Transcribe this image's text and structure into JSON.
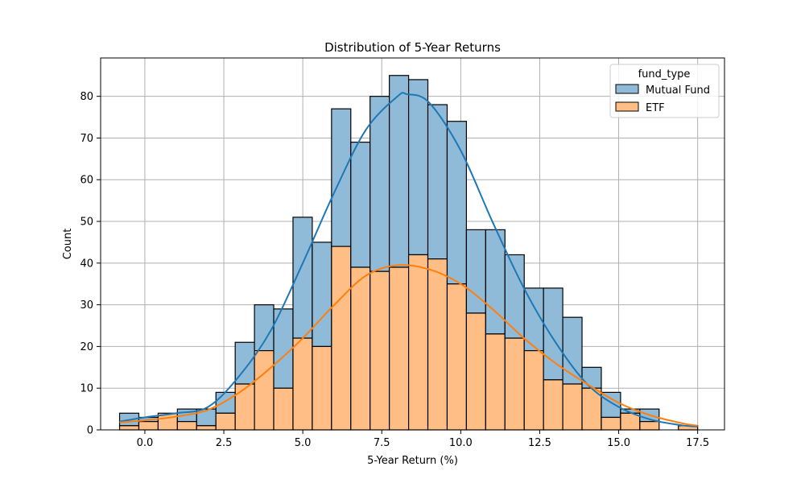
{
  "chart_data": {
    "type": "histogram",
    "stacked": true,
    "title": "Distribution of 5-Year Returns",
    "xlabel": "5-Year Return (%)",
    "ylabel": "Count",
    "xlim": [
      -1.4,
      18.35
    ],
    "ylim": [
      0,
      89.2
    ],
    "grid": true,
    "xticks": [
      "0.0",
      "2.5",
      "5.0",
      "7.5",
      "10.0",
      "12.5",
      "15.0",
      "17.5"
    ],
    "xtick_values": [
      0,
      2.5,
      5,
      7.5,
      10,
      12.5,
      15,
      17.5
    ],
    "yticks": [
      "0",
      "10",
      "20",
      "30",
      "40",
      "50",
      "60",
      "70",
      "80"
    ],
    "ytick_values": [
      0,
      10,
      20,
      30,
      40,
      50,
      60,
      70,
      80
    ],
    "bin_start": -0.8,
    "bin_width": 0.61,
    "legend": {
      "title": "fund_type",
      "position": "top-right",
      "entries": [
        "Mutual Fund",
        "ETF"
      ]
    },
    "series": [
      {
        "name": "ETF",
        "color": "#ffbe86",
        "kde_color": "#ff7f0e",
        "counts": [
          1,
          2,
          4,
          2,
          1,
          4,
          11,
          19,
          10,
          22,
          20,
          44,
          39,
          38,
          39,
          42,
          41,
          35,
          28,
          23,
          22,
          19,
          12,
          11,
          10,
          3,
          4,
          2,
          0,
          1
        ],
        "kde": [
          [
            -0.8,
            1.8
          ],
          [
            0,
            2.3
          ],
          [
            1,
            3.2
          ],
          [
            2,
            4.8
          ],
          [
            3,
            9.0
          ],
          [
            4,
            15.0
          ],
          [
            5,
            22.0
          ],
          [
            6,
            30.0
          ],
          [
            7,
            37.0
          ],
          [
            8,
            39.5
          ],
          [
            9,
            38.5
          ],
          [
            10,
            35.0
          ],
          [
            11,
            29.0
          ],
          [
            12,
            22.0
          ],
          [
            13,
            16.0
          ],
          [
            14,
            11.0
          ],
          [
            15,
            6.5
          ],
          [
            16,
            3.5
          ],
          [
            17,
            1.6
          ],
          [
            17.5,
            1.0
          ]
        ]
      },
      {
        "name": "Mutual Fund",
        "color": "#8fbbd9",
        "kde_color": "#1f77b4",
        "counts": [
          3,
          1,
          0,
          3,
          4,
          5,
          10,
          11,
          19,
          29,
          25,
          33,
          30,
          42,
          46,
          42,
          37,
          39,
          20,
          25,
          20,
          15,
          22,
          16,
          5,
          6,
          1,
          3,
          0,
          0
        ],
        "kde": [
          [
            -0.8,
            2.0
          ],
          [
            0,
            3.0
          ],
          [
            1,
            4.0
          ],
          [
            2,
            5.5
          ],
          [
            3,
            13.0
          ],
          [
            4,
            24.0
          ],
          [
            5,
            40.0
          ],
          [
            6,
            57.0
          ],
          [
            7,
            72.0
          ],
          [
            8,
            80.0
          ],
          [
            8.3,
            80.5
          ],
          [
            9,
            78.5
          ],
          [
            10,
            67.0
          ],
          [
            11,
            50.0
          ],
          [
            12,
            34.0
          ],
          [
            13,
            21.0
          ],
          [
            14,
            11.0
          ],
          [
            15,
            5.5
          ],
          [
            16,
            2.5
          ],
          [
            17,
            1.1
          ],
          [
            17.5,
            0.8
          ]
        ]
      }
    ]
  }
}
